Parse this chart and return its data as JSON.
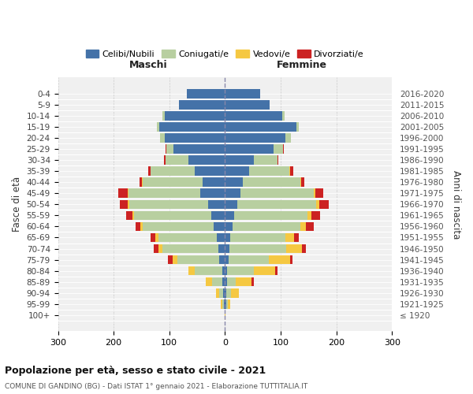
{
  "age_groups": [
    "0-4",
    "5-9",
    "10-14",
    "15-19",
    "20-24",
    "25-29",
    "30-34",
    "35-39",
    "40-44",
    "45-49",
    "50-54",
    "55-59",
    "60-64",
    "65-69",
    "70-74",
    "75-79",
    "80-84",
    "85-89",
    "90-94",
    "95-99",
    "100+"
  ],
  "birth_years": [
    "2016-2020",
    "2011-2015",
    "2006-2010",
    "2001-2005",
    "1996-2000",
    "1991-1995",
    "1986-1990",
    "1981-1985",
    "1976-1980",
    "1971-1975",
    "1966-1970",
    "1961-1965",
    "1956-1960",
    "1951-1955",
    "1946-1950",
    "1941-1945",
    "1936-1940",
    "1931-1935",
    "1926-1930",
    "1921-1925",
    "≤ 1920"
  ],
  "male_celibi": [
    68,
    82,
    108,
    118,
    108,
    92,
    65,
    55,
    40,
    45,
    30,
    25,
    20,
    15,
    12,
    10,
    5,
    5,
    3,
    2,
    0
  ],
  "male_coniugati": [
    0,
    0,
    4,
    4,
    8,
    14,
    42,
    78,
    108,
    128,
    142,
    138,
    128,
    105,
    100,
    75,
    50,
    18,
    8,
    3,
    0
  ],
  "male_vedovi": [
    0,
    0,
    0,
    0,
    0,
    0,
    0,
    0,
    1,
    2,
    3,
    3,
    4,
    5,
    7,
    9,
    10,
    12,
    5,
    2,
    0
  ],
  "male_divorziati": [
    0,
    0,
    0,
    0,
    0,
    1,
    2,
    5,
    5,
    17,
    14,
    11,
    9,
    9,
    9,
    8,
    0,
    0,
    0,
    0,
    0
  ],
  "female_nubili": [
    63,
    80,
    103,
    128,
    108,
    88,
    52,
    43,
    32,
    28,
    22,
    16,
    13,
    10,
    8,
    7,
    4,
    4,
    3,
    2,
    0
  ],
  "female_coniugate": [
    0,
    0,
    4,
    4,
    10,
    16,
    42,
    73,
    103,
    132,
    142,
    132,
    122,
    98,
    102,
    72,
    48,
    16,
    8,
    3,
    0
  ],
  "female_vedove": [
    0,
    0,
    0,
    0,
    0,
    0,
    0,
    1,
    2,
    3,
    5,
    7,
    10,
    16,
    28,
    38,
    38,
    28,
    14,
    5,
    1
  ],
  "female_divorziate": [
    0,
    0,
    0,
    0,
    0,
    1,
    2,
    5,
    5,
    14,
    17,
    16,
    14,
    9,
    7,
    4,
    4,
    4,
    0,
    0,
    0
  ],
  "colors_celibi": "#4472a8",
  "colors_coniugati": "#b8cfa0",
  "colors_vedovi": "#f5c842",
  "colors_divorziati": "#cc2222",
  "xlim": 300,
  "title": "Popolazione per età, sesso e stato civile - 2021",
  "subtitle": "COMUNE DI GANDINO (BG) - Dati ISTAT 1° gennaio 2021 - Elaborazione TUTTITALIA.IT",
  "legend_labels": [
    "Celibi/Nubili",
    "Coniugati/e",
    "Vedovi/e",
    "Divorziati/e"
  ],
  "ylabel_left": "Fasce di età",
  "ylabel_right": "Anni di nascita",
  "label_maschi": "Maschi",
  "label_femmine": "Femmine",
  "bg_color": "#f0f0f0"
}
